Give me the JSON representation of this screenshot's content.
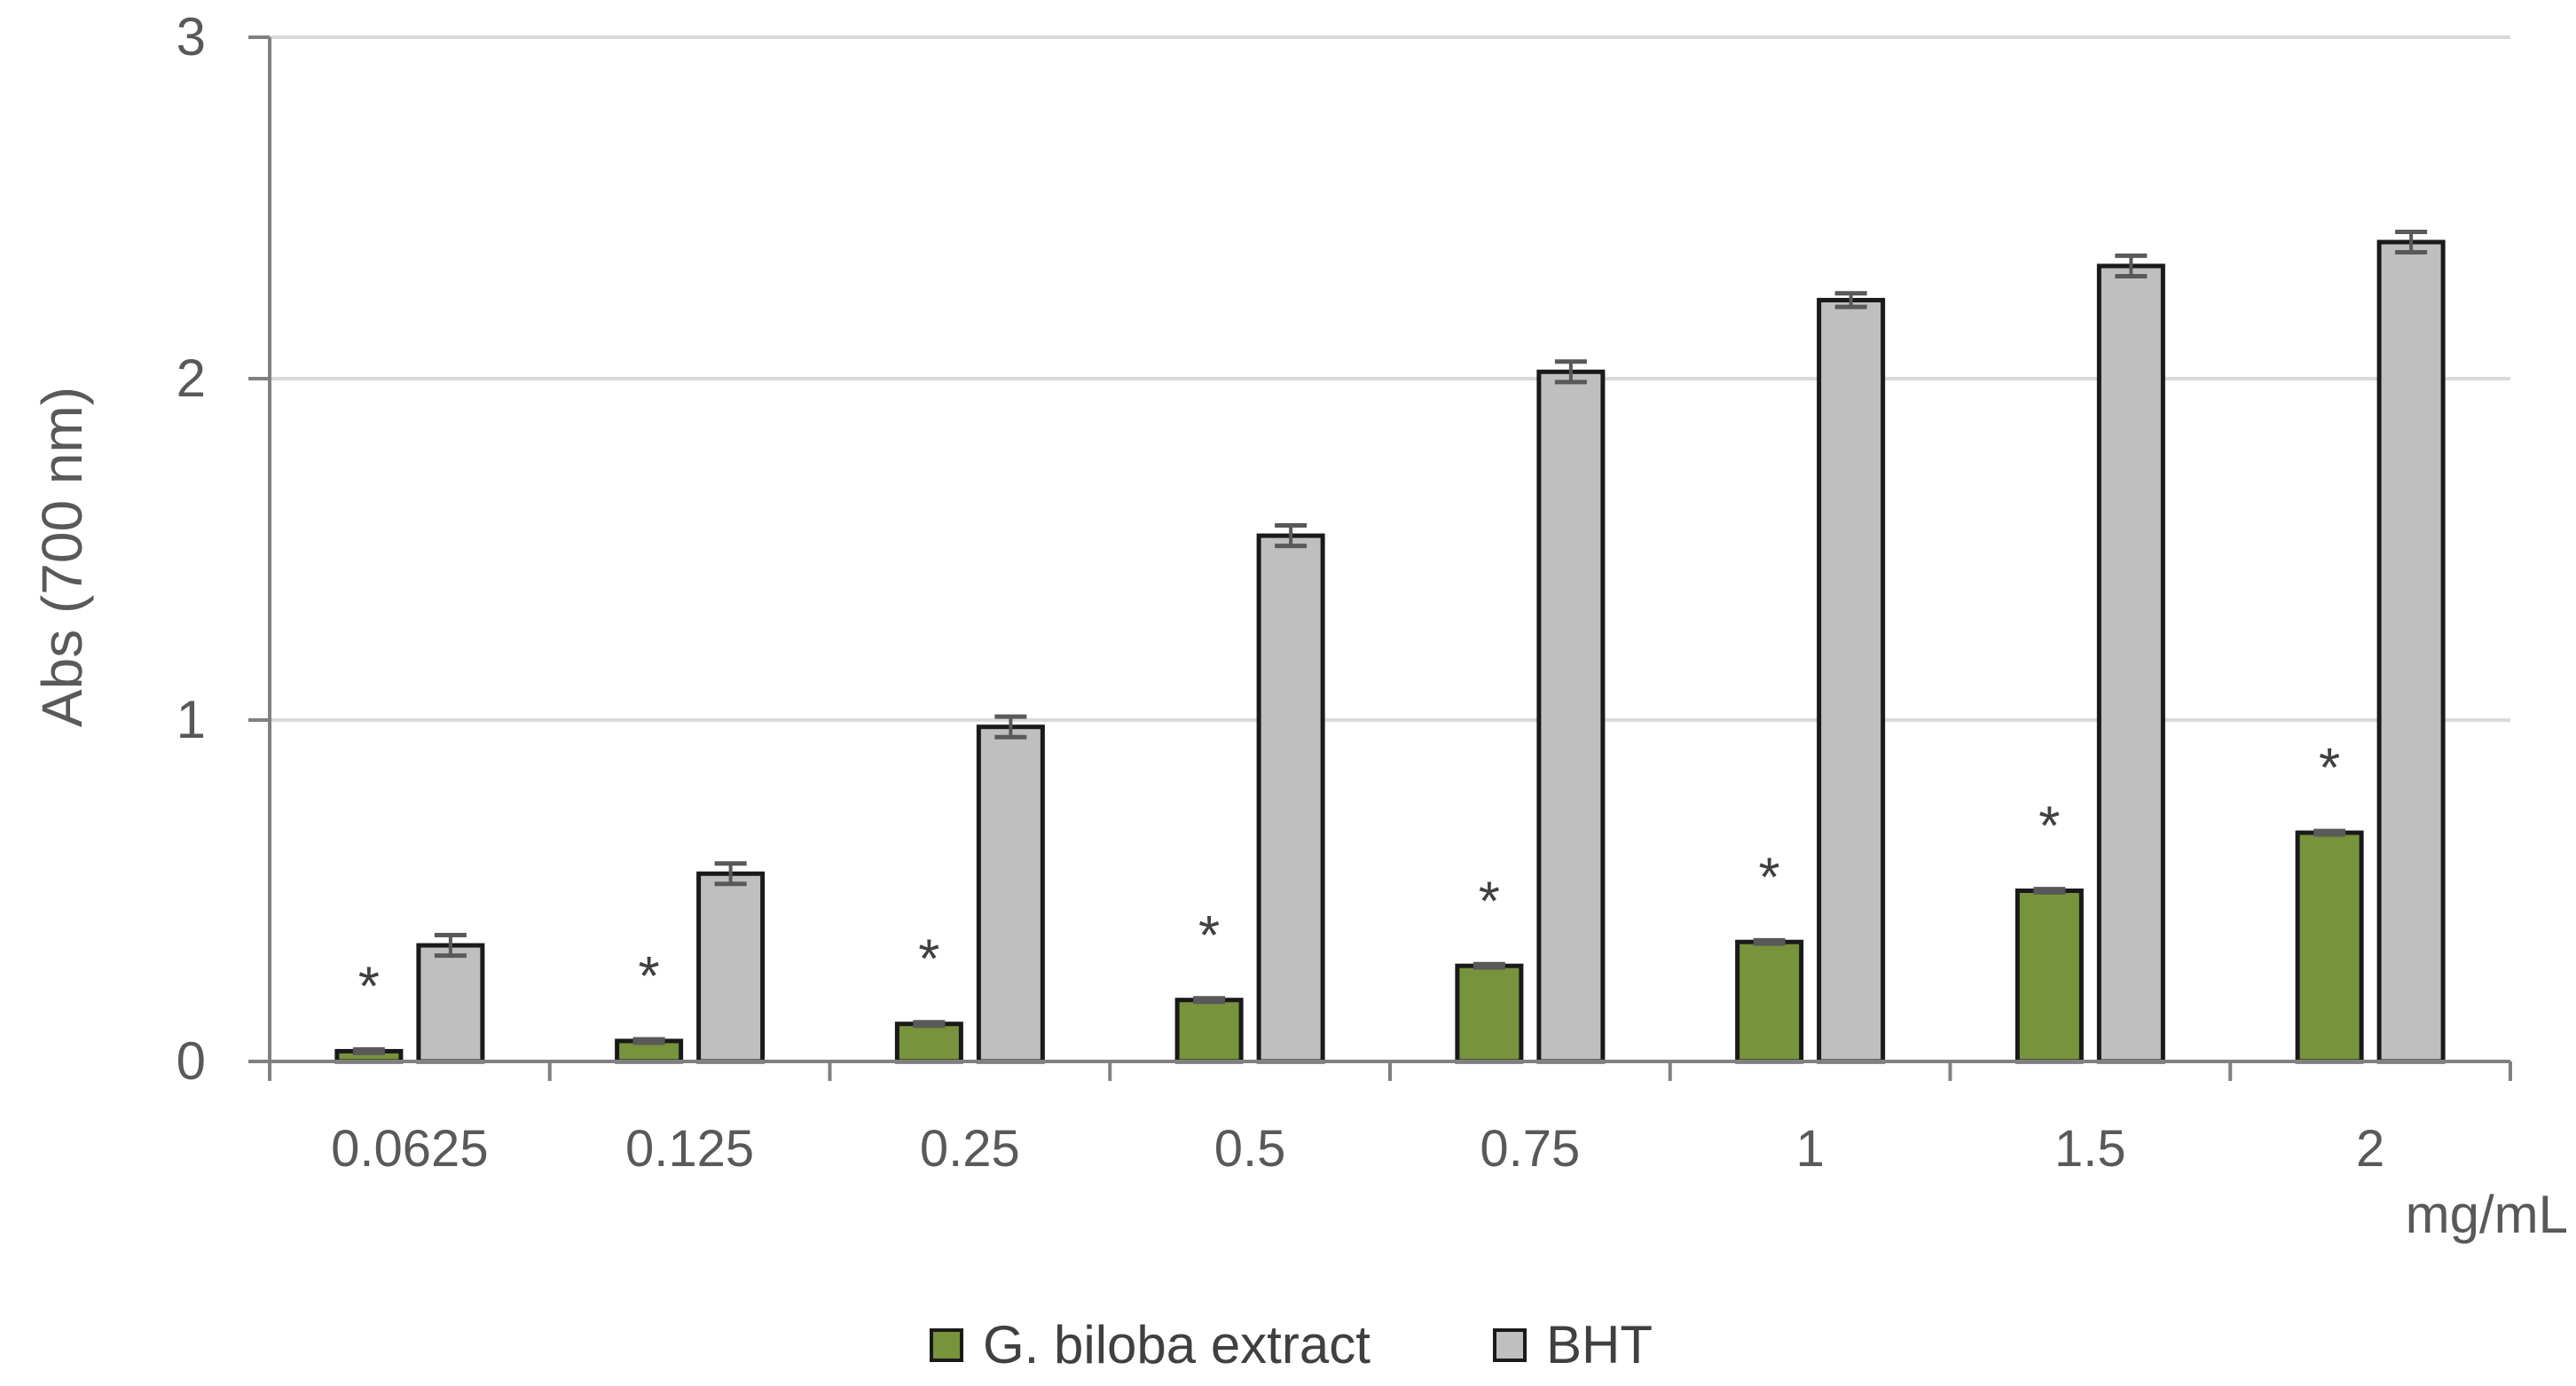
{
  "chart_data": {
    "type": "bar",
    "ylabel": "Abs (700 nm)",
    "xlabel": "mg/mL",
    "ylim": [
      0,
      3
    ],
    "yticks": [
      0,
      1,
      2,
      3
    ],
    "grid": true,
    "legend": "bottom",
    "categories": [
      "0.0625",
      "0.125",
      "0.25",
      "0.5",
      "0.75",
      "1",
      "1.5",
      "2"
    ],
    "significance_marker": "*",
    "series": [
      {
        "name": "G. biloba extract",
        "color": "#77933C",
        "values": [
          0.03,
          0.06,
          0.11,
          0.18,
          0.28,
          0.35,
          0.5,
          0.67
        ],
        "errors": [
          0.005,
          0.005,
          0.005,
          0.005,
          0.005,
          0.005,
          0.005,
          0.005
        ],
        "significant": [
          true,
          true,
          true,
          true,
          true,
          true,
          true,
          true
        ]
      },
      {
        "name": "BHT",
        "color": "#BFBFBF",
        "values": [
          0.34,
          0.55,
          0.98,
          1.54,
          2.02,
          2.23,
          2.33,
          2.4
        ],
        "errors": [
          0.03,
          0.03,
          0.03,
          0.03,
          0.03,
          0.02,
          0.03,
          0.03
        ],
        "significant": [
          false,
          false,
          false,
          false,
          false,
          false,
          false,
          false
        ]
      }
    ]
  }
}
